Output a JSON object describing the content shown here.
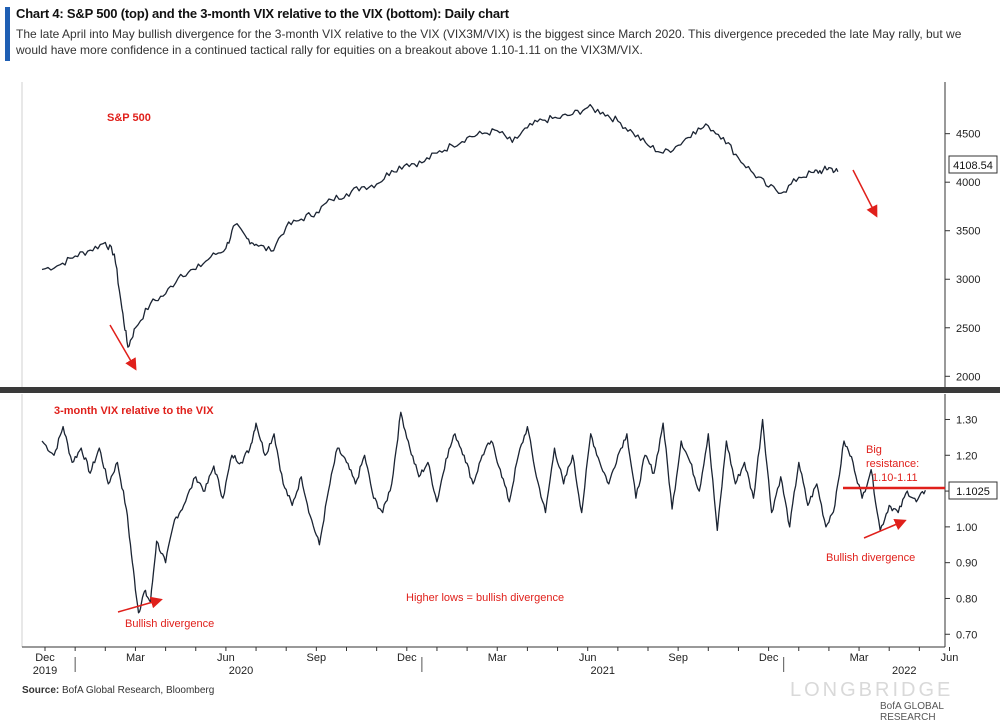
{
  "title": "Chart 4: S&P 500 (top) and the 3-month VIX relative to the VIX (bottom): Daily chart",
  "subtitle": "The late April into May bullish divergence for the 3-month VIX relative to the VIX (VIX3M/VIX) is the biggest since March 2020. This divergence preceded the late May rally, but we would have more confidence in a continued tactical rally for equities on a breakout above 1.10-1.11 on the VIX3M/VIX.",
  "source_label": "Source:",
  "source_text": "BofA Global Research, Bloomberg",
  "watermark": "LONGBRIDGE",
  "footer_brand": "BofA GLOBAL RESEARCH",
  "colors": {
    "series": "#1b2433",
    "annotation": "#e0201b",
    "accent": "#1f5fb4"
  },
  "chart_data": [
    {
      "type": "line",
      "panel": "top",
      "label": "S&P 500",
      "x_unit": "month index (0 = Dec 2019)",
      "ylim": [
        1900,
        4950
      ],
      "yticks": [
        2000,
        2500,
        3000,
        3500,
        4000,
        4500
      ],
      "last_value": "4108.54",
      "series": [
        {
          "x": [
            -0.1,
            0.5,
            1.0,
            1.5,
            2.0,
            2.3,
            2.55,
            2.75,
            3.0,
            3.5,
            4.0,
            4.5,
            5.0,
            5.5,
            6.0,
            6.3,
            6.7,
            7.0,
            7.5,
            8.0,
            8.5,
            9.0,
            9.5,
            10.0,
            10.5,
            11.0,
            11.5,
            12.0,
            12.5,
            13.0,
            13.5,
            14.0,
            14.5,
            15.0,
            15.5,
            16.0,
            16.5,
            17.0,
            17.5,
            18.0,
            18.5,
            19.0,
            19.5,
            20.0,
            20.5,
            21.0,
            21.5,
            22.0,
            22.5,
            23.0,
            23.5,
            24.0,
            24.5,
            25.0,
            25.5,
            25.8,
            26.0,
            26.3
          ],
          "y": [
            3100,
            3150,
            3240,
            3300,
            3380,
            3260,
            2700,
            2300,
            2500,
            2750,
            2850,
            3050,
            3100,
            3230,
            3320,
            3560,
            3420,
            3360,
            3290,
            3540,
            3620,
            3690,
            3820,
            3880,
            3950,
            3980,
            4120,
            4190,
            4200,
            4300,
            4380,
            4460,
            4500,
            4530,
            4410,
            4560,
            4640,
            4660,
            4700,
            4770,
            4720,
            4630,
            4510,
            4380,
            4300,
            4380,
            4520,
            4580,
            4460,
            4250,
            4090,
            3950,
            3900,
            4050,
            4100,
            4120,
            4150,
            4108
          ]
        }
      ]
    },
    {
      "type": "line",
      "panel": "bottom",
      "label": "3-month VIX relative to the VIX",
      "ylim": [
        0.67,
        1.36
      ],
      "yticks": [
        0.7,
        0.8,
        0.9,
        1.0,
        1.1,
        1.2,
        1.3
      ],
      "last_value": "1.1025",
      "x_ticks_months": [
        {
          "x": 0,
          "label": "Dec"
        },
        {
          "x": 3,
          "label": "Mar"
        },
        {
          "x": 6,
          "label": "Jun"
        },
        {
          "x": 9,
          "label": "Sep"
        },
        {
          "x": 12,
          "label": "Dec"
        },
        {
          "x": 15,
          "label": "Mar"
        },
        {
          "x": 18,
          "label": "Jun"
        },
        {
          "x": 21,
          "label": "Sep"
        },
        {
          "x": 24,
          "label": "Dec"
        },
        {
          "x": 27,
          "label": "Mar"
        },
        {
          "x": 30,
          "label": "Jun"
        }
      ],
      "x_ticks_years": [
        {
          "x": 0,
          "label": "2019"
        },
        {
          "x": 6.5,
          "label": "2020"
        },
        {
          "x": 18.5,
          "label": "2021"
        },
        {
          "x": 28.5,
          "label": "2022"
        }
      ],
      "series": [
        {
          "x": [
            -0.1,
            0.3,
            0.6,
            0.9,
            1.2,
            1.5,
            1.8,
            2.1,
            2.4,
            2.7,
            2.9,
            3.1,
            3.3,
            3.5,
            3.7,
            4.0,
            4.3,
            4.6,
            5.0,
            5.3,
            5.6,
            5.9,
            6.2,
            6.5,
            6.8,
            7.0,
            7.3,
            7.6,
            7.9,
            8.2,
            8.5,
            8.8,
            9.1,
            9.4,
            9.7,
            10.0,
            10.3,
            10.6,
            10.9,
            11.2,
            11.5,
            11.8,
            12.1,
            12.4,
            12.7,
            13.0,
            13.3,
            13.6,
            13.9,
            14.2,
            14.5,
            14.8,
            15.1,
            15.4,
            15.7,
            16.0,
            16.3,
            16.6,
            16.9,
            17.2,
            17.5,
            17.8,
            18.1,
            18.4,
            18.7,
            19.0,
            19.3,
            19.6,
            19.9,
            20.2,
            20.5,
            20.8,
            21.1,
            21.4,
            21.7,
            22.0,
            22.3,
            22.6,
            22.9,
            23.2,
            23.5,
            23.8,
            24.1,
            24.4,
            24.7,
            25.0,
            25.3,
            25.6,
            25.9,
            26.2,
            26.5,
            26.8,
            27.1,
            27.4,
            27.7,
            28.0,
            28.3,
            28.6,
            28.9,
            29.2
          ],
          "y": [
            1.24,
            1.2,
            1.28,
            1.18,
            1.22,
            1.15,
            1.22,
            1.12,
            1.18,
            1.05,
            0.9,
            0.76,
            0.82,
            0.79,
            0.96,
            0.9,
            1.02,
            1.06,
            1.14,
            1.1,
            1.17,
            1.08,
            1.2,
            1.18,
            1.22,
            1.29,
            1.2,
            1.26,
            1.12,
            1.06,
            1.14,
            1.03,
            0.95,
            1.1,
            1.22,
            1.18,
            1.12,
            1.2,
            1.08,
            1.04,
            1.12,
            1.32,
            1.22,
            1.14,
            1.18,
            1.07,
            1.19,
            1.26,
            1.2,
            1.12,
            1.2,
            1.24,
            1.16,
            1.07,
            1.2,
            1.28,
            1.14,
            1.04,
            1.22,
            1.12,
            1.2,
            1.04,
            1.26,
            1.18,
            1.12,
            1.2,
            1.26,
            1.08,
            1.2,
            1.15,
            1.29,
            1.05,
            1.24,
            1.18,
            1.1,
            1.26,
            0.99,
            1.24,
            1.12,
            1.18,
            1.08,
            1.3,
            1.04,
            1.14,
            1.0,
            1.18,
            1.06,
            1.12,
            1.0,
            1.06,
            1.24,
            1.18,
            1.08,
            1.16,
            0.99,
            1.06,
            1.04,
            1.1,
            1.07,
            1.1025
          ]
        }
      ]
    }
  ],
  "annotations": {
    "sp500_label": "S&P 500",
    "vix_label": "3-month VIX relative to the VIX",
    "bullish_left": "Bullish divergence",
    "higher_lows": "Higher lows = bullish divergence",
    "bullish_right": "Bullish divergence",
    "resistance_line1": "Big",
    "resistance_line2": "resistance:",
    "resistance_line3": "1.10-1.11"
  }
}
